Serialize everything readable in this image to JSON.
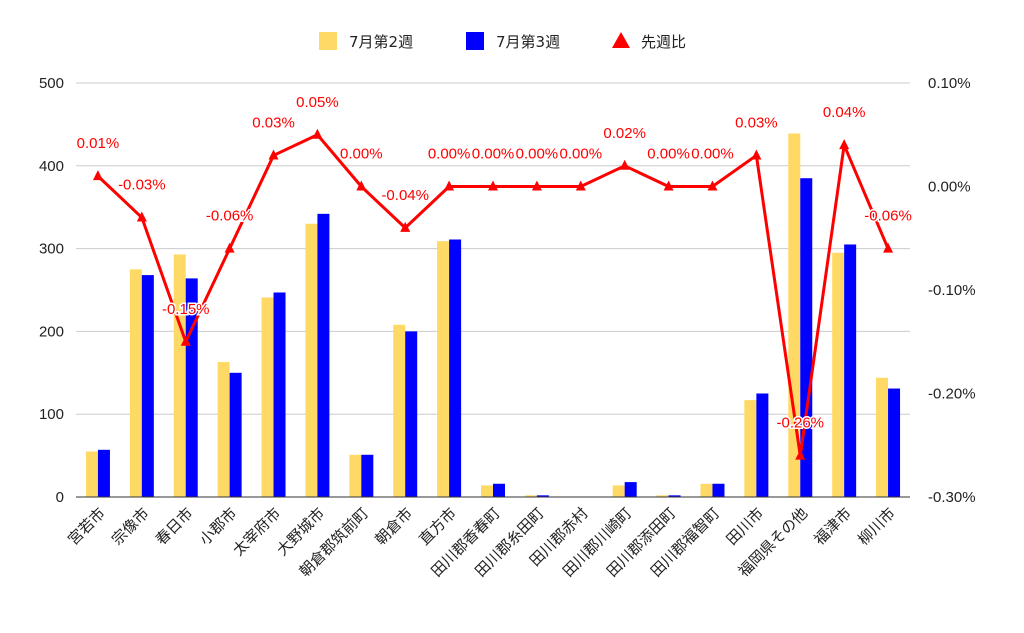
{
  "chart_data": {
    "type": "bar",
    "combo_line": "line",
    "categories": [
      "宮若市",
      "宗像市",
      "春日市",
      "小郡市",
      "太宰府市",
      "大野城市",
      "朝倉郡筑前町",
      "朝倉市",
      "直方市",
      "田川郡香春町",
      "田川郡糸田町",
      "田川郡赤村",
      "田川郡川崎町",
      "田川郡添田町",
      "田川郡福智町",
      "田川市",
      "福岡県その他",
      "福津市",
      "柳川市"
    ],
    "series": [
      {
        "name": "7月第2週",
        "type": "bar",
        "axis": "left",
        "color": "#FFD966",
        "values": [
          55,
          275,
          293,
          163,
          241,
          330,
          51,
          208,
          309,
          14,
          2,
          0,
          14,
          2,
          16,
          117,
          439,
          295,
          144
        ]
      },
      {
        "name": "7月第3週",
        "type": "bar",
        "axis": "left",
        "color": "#0000FF",
        "values": [
          57,
          268,
          264,
          150,
          247,
          342,
          51,
          200,
          311,
          16,
          2,
          0,
          18,
          2,
          16,
          125,
          385,
          305,
          131
        ]
      },
      {
        "name": "先週比",
        "type": "line",
        "axis": "right",
        "color": "#FF0000",
        "marker": "triangle",
        "values": [
          0.0001,
          -0.0003,
          -0.0015,
          -0.0006,
          0.0003,
          0.0005,
          0.0,
          -0.0004,
          0.0,
          0.0,
          0.0,
          0.0,
          0.0002,
          0.0,
          0.0,
          0.0003,
          -0.0026,
          0.0004,
          -0.0006
        ],
        "labels": [
          "0.01%",
          "-0.03%",
          "-0.15%",
          "-0.06%",
          "0.03%",
          "0.05%",
          "0.00%",
          "-0.04%",
          "0.00%",
          "0.00%",
          "0.00%",
          "0.00%",
          "0.02%",
          "0.00%",
          "0.00%",
          "0.03%",
          "-0.26%",
          "0.04%",
          "-0.06%"
        ]
      }
    ],
    "ylim_left": [
      0,
      500
    ],
    "yticks_left": [
      "0",
      "100",
      "200",
      "300",
      "400",
      "500"
    ],
    "ylim_right": [
      -0.003,
      0.001
    ],
    "yticks_right": [
      "-0.30%",
      "-0.20%",
      "-0.10%",
      "0.00%",
      "0.10%"
    ],
    "legend_position": "top",
    "grid": true
  }
}
